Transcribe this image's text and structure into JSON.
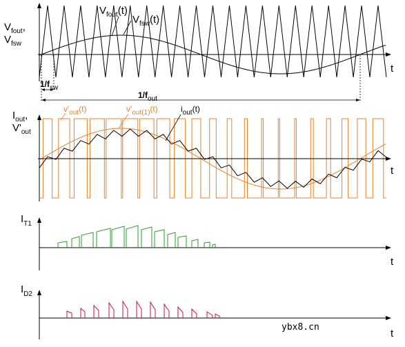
{
  "panel1": {
    "ylabel_line1_main": "V",
    "ylabel_line1_sub": "fout",
    "ylabel_line2_main": "V",
    "ylabel_line2_sub": "fsw",
    "label_vfout_main": "V",
    "label_vfout_sub": "fout",
    "label_vfout_arg": "(t)",
    "label_vfsw_main": "V",
    "label_vfsw_sub": "fsw",
    "label_vfsw_arg": "(t)",
    "axis_t": "t",
    "period_fsw_main": "1/f",
    "period_fsw_sub": "sw",
    "period_fout_main": "1/f",
    "period_fout_sub": "out",
    "triangle_cycles": 21,
    "sine_cycles": 1
  },
  "panel2": {
    "ylabel_line1_main": "I",
    "ylabel_line1_sub": "out",
    "ylabel_line2_main": "V'",
    "ylabel_line2_sub": "out",
    "label_vout_main": "v'",
    "label_vout_sub": "out",
    "label_vout_arg": "(t)",
    "label_vout1_main": "v'",
    "label_vout1_sub": "out(1)",
    "label_vout1_arg": "(t)",
    "label_iout_main": "i",
    "label_iout_sub": "out",
    "label_iout_arg": "(t)",
    "axis_t": "t"
  },
  "panel3": {
    "ylabel_main": "I",
    "ylabel_sub": "T1",
    "axis_t": "t"
  },
  "panel4": {
    "ylabel_main": "I",
    "ylabel_sub": "D2",
    "axis_t": "t"
  },
  "watermark": "ybx8.cn",
  "colors": {
    "axis": "#000000",
    "orange": "#e8822a",
    "green": "#2e9a2e",
    "red": "#c4133a",
    "ink": "#000000"
  }
}
